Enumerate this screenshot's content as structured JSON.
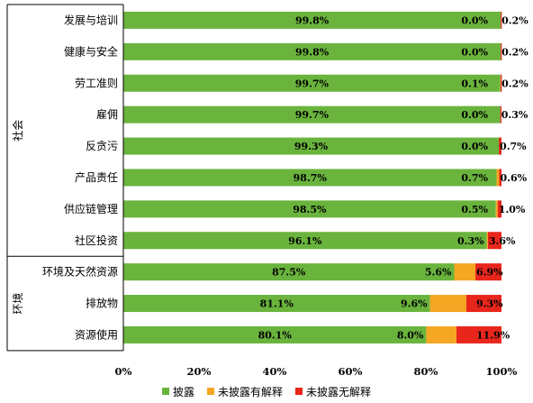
{
  "chart_data": {
    "type": "bar",
    "orientation": "horizontal",
    "stacked": true,
    "groups": [
      {
        "label": "社会",
        "categories": [
          "发展与培训",
          "健康与安全",
          "劳工准则",
          "雇佣",
          "反贪污",
          "产品责任",
          "供应链管理",
          "社区投资"
        ]
      },
      {
        "label": "环境",
        "categories": [
          "环境及天然资源",
          "排放物",
          "资源使用"
        ]
      }
    ],
    "categories": [
      "发展与培训",
      "健康与安全",
      "劳工准则",
      "雇佣",
      "反贪污",
      "产品责任",
      "供应链管理",
      "社区投资",
      "环境及天然资源",
      "排放物",
      "资源使用"
    ],
    "series": [
      {
        "name": "披露",
        "color": "#6ab43e",
        "values": [
          99.8,
          99.8,
          99.7,
          99.7,
          99.3,
          98.7,
          98.5,
          96.1,
          87.5,
          81.1,
          80.1
        ],
        "labels": [
          "99.8%",
          "99.8%",
          "99.7%",
          "99.7%",
          "99.3%",
          "98.7%",
          "98.5%",
          "96.1%",
          "87.5%",
          "81.1%",
          "80.1%"
        ]
      },
      {
        "name": "未披露有解释",
        "color": "#f5a623",
        "values": [
          0.0,
          0.0,
          0.1,
          0.0,
          0.0,
          0.7,
          0.5,
          0.3,
          5.6,
          9.6,
          8.0
        ],
        "labels": [
          "0.0%",
          "0.0%",
          "0.1%",
          "0.0%",
          "0.0%",
          "0.7%",
          "0.5%",
          "0.3%",
          "5.6%",
          "9.6%",
          "8.0%"
        ]
      },
      {
        "name": "未披露无解释",
        "color": "#e8261c",
        "values": [
          0.2,
          0.2,
          0.2,
          0.3,
          0.7,
          0.6,
          1.0,
          3.6,
          6.9,
          9.3,
          11.9
        ],
        "labels": [
          "0.2%",
          "0.2%",
          "0.2%",
          "0.3%",
          "0.7%",
          "0.6%",
          "1.0%",
          "3.6%",
          "6.9%",
          "9.3%",
          "11.9%"
        ]
      }
    ],
    "xticks": [
      "0%",
      "20%",
      "40%",
      "60%",
      "80%",
      "100%"
    ],
    "xlim": [
      0,
      100
    ],
    "grid": false,
    "legend": "bottom"
  }
}
